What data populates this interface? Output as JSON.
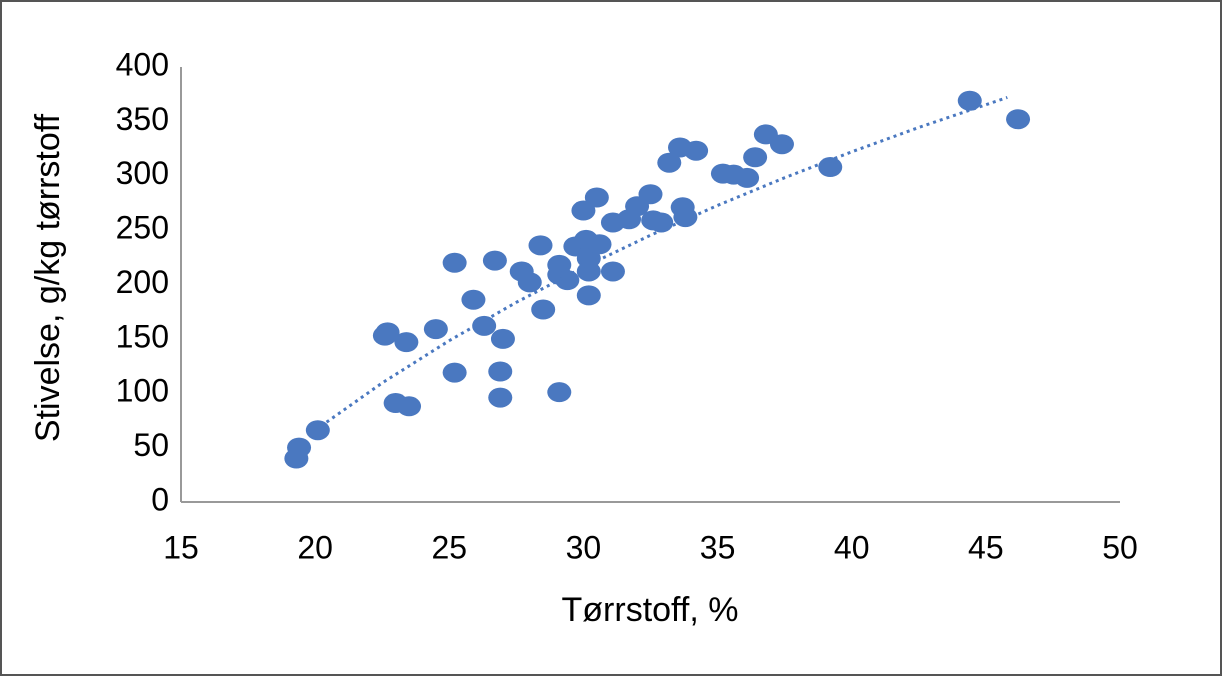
{
  "chart_data": {
    "type": "scatter",
    "x_label": "Tørrstoff, %",
    "y_label": "Stivelse, g/kg tørrstoff",
    "color": "#4a78c0",
    "grid": false,
    "xlim": [
      15,
      50
    ],
    "xticks": [
      15,
      20,
      25,
      30,
      35,
      40,
      45,
      50
    ],
    "ylim": [
      0,
      400
    ],
    "yticks": [
      0,
      50,
      100,
      150,
      200,
      250,
      300,
      350,
      400
    ],
    "x": [
      19.3,
      19.4,
      20.1,
      22.6,
      22.7,
      23.4,
      23.0,
      23.5,
      24.5,
      25.2,
      25.2,
      25.9,
      26.3,
      26.7,
      26.9,
      26.9,
      27.0,
      27.7,
      28.0,
      28.4,
      28.5,
      29.1,
      29.1,
      29.1,
      29.4,
      29.7,
      30.0,
      30.1,
      30.2,
      30.2,
      30.2,
      30.5,
      30.6,
      31.1,
      31.1,
      31.7,
      32.0,
      32.5,
      32.6,
      32.9,
      33.2,
      33.6,
      34.2,
      33.7,
      33.8,
      35.2,
      35.6,
      36.1,
      36.4,
      36.8,
      37.4,
      39.2,
      44.4,
      46.2
    ],
    "values": [
      40,
      50,
      66,
      153,
      156,
      147,
      91,
      88,
      159,
      220,
      119,
      186,
      162,
      222,
      120,
      96,
      150,
      212,
      202,
      236,
      177,
      101,
      218,
      209,
      204,
      235,
      268,
      241,
      224,
      190,
      212,
      280,
      237,
      212,
      257,
      260,
      272,
      283,
      259,
      257,
      312,
      326,
      323,
      271,
      262,
      302,
      301,
      298,
      317,
      338,
      329,
      308,
      369,
      352
    ],
    "trendline": {
      "type": "logarithmic",
      "x": [
        20,
        22.5,
        25,
        27.5,
        30,
        32.5,
        35,
        37.5,
        40,
        42.5,
        45.8
      ],
      "y": [
        66,
        109.5,
        148.4,
        183.6,
        215.8,
        245.3,
        272.7,
        298.2,
        322,
        344.4,
        372
      ]
    }
  }
}
